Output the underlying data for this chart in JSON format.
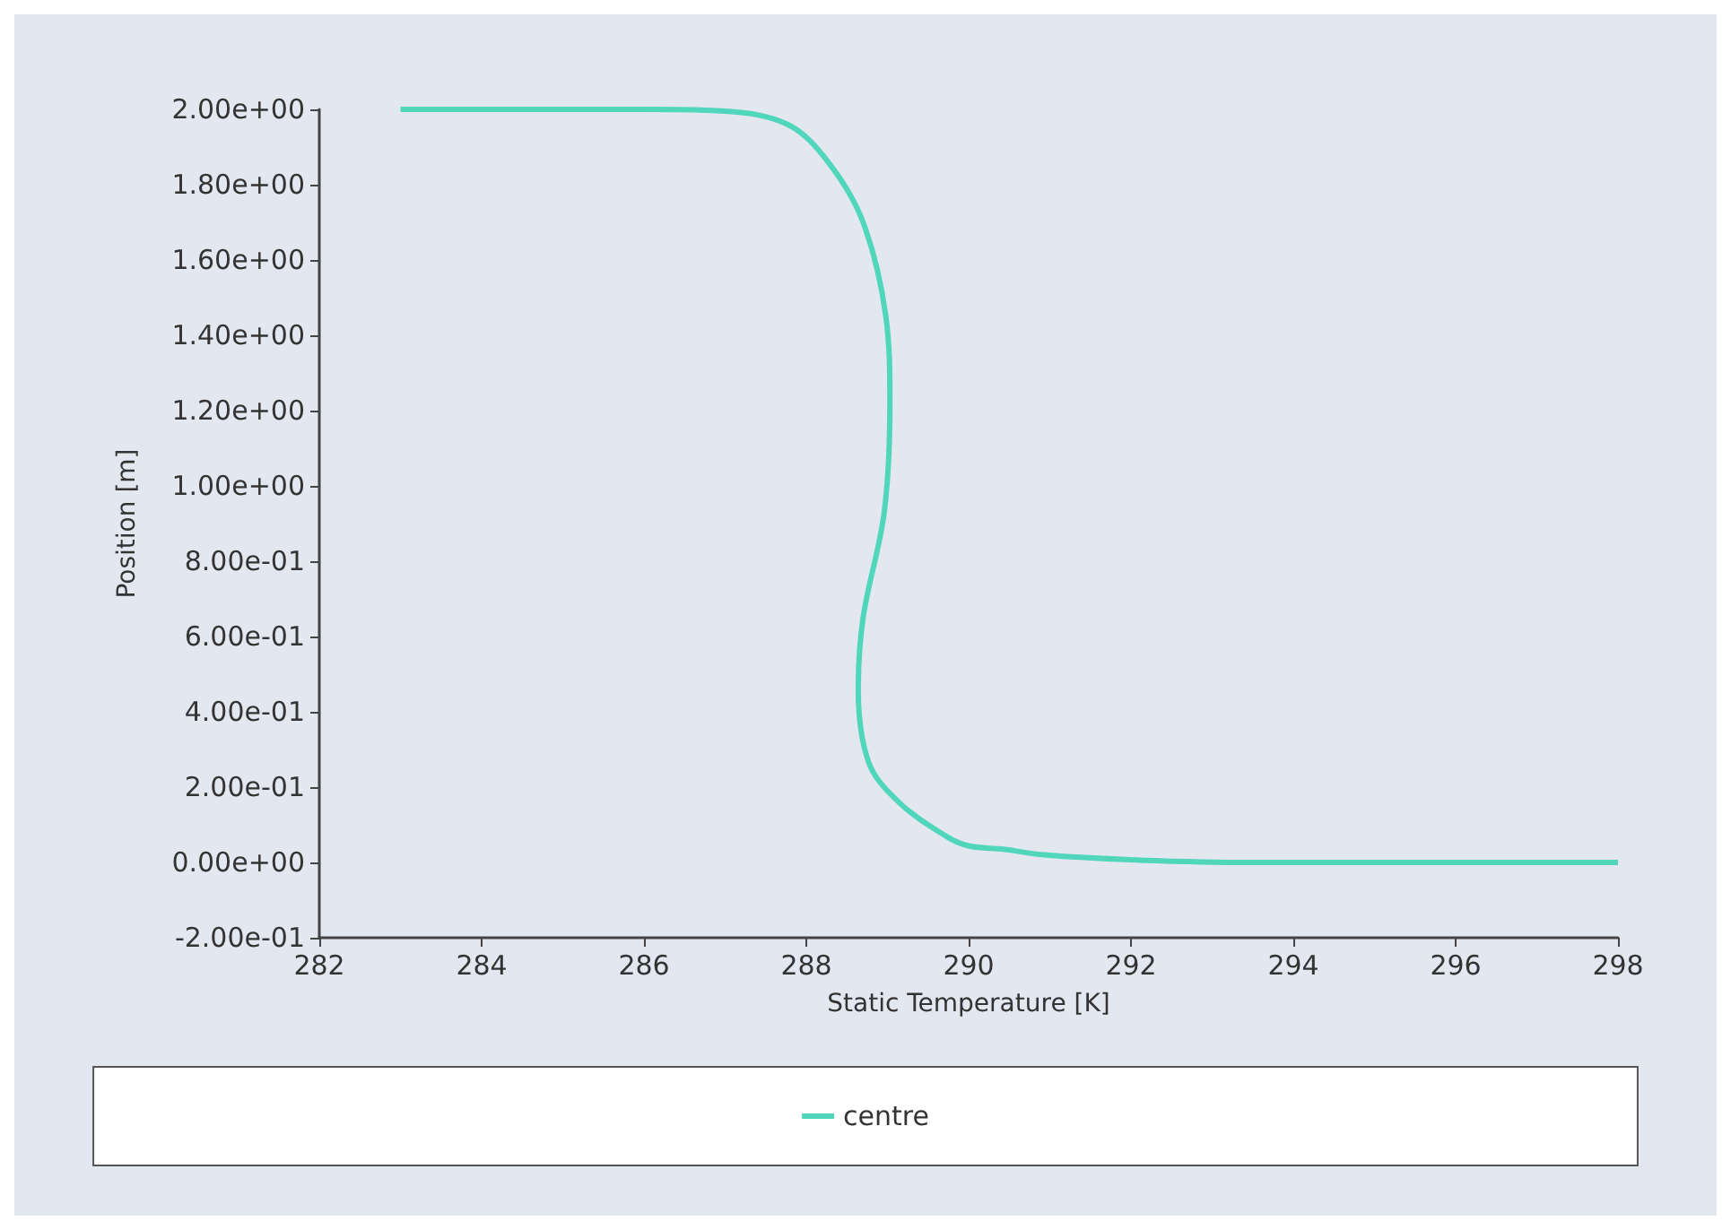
{
  "chart_data": {
    "type": "line",
    "xlabel": "Static Temperature [K]",
    "ylabel": "Position [m]",
    "xlim": [
      282,
      298
    ],
    "xticks": [
      282,
      284,
      286,
      288,
      290,
      292,
      294,
      296,
      298
    ],
    "ylim": [
      -0.2,
      2.0
    ],
    "yticks": [
      {
        "value": -0.2,
        "label": "-2.00e-01"
      },
      {
        "value": 0,
        "label": "0.00e+00"
      },
      {
        "value": 0.2,
        "label": "2.00e-01"
      },
      {
        "value": 0.4,
        "label": "4.00e-01"
      },
      {
        "value": 0.6,
        "label": "6.00e-01"
      },
      {
        "value": 0.8,
        "label": "8.00e-01"
      },
      {
        "value": 1.0,
        "label": "1.00e+00"
      },
      {
        "value": 1.2,
        "label": "1.20e+00"
      },
      {
        "value": 1.4,
        "label": "1.40e+00"
      },
      {
        "value": 1.6,
        "label": "1.60e+00"
      },
      {
        "value": 1.8,
        "label": "1.80e+00"
      },
      {
        "value": 2.0,
        "label": "2.00e+00"
      }
    ],
    "grid": false,
    "legend": "bottom",
    "marker": "none",
    "line_style": "solid",
    "series": [
      {
        "name": "centre",
        "color": "#4fd6bb",
        "x": [
          283,
          286,
          287,
          287.77,
          288.27,
          288.7,
          288.98,
          289.03,
          288.96,
          288.7,
          288.64,
          288.77,
          289.14,
          289.72,
          290.0,
          290.43,
          290.93,
          292.0,
          293.5,
          296,
          298
        ],
        "values": [
          2.0,
          2.0,
          1.995,
          1.96,
          1.86,
          1.7,
          1.45,
          1.22,
          0.93,
          0.65,
          0.46,
          0.265,
          0.16,
          0.07,
          0.044,
          0.035,
          0.02,
          0.007,
          0.0,
          0.0,
          0.0
        ]
      }
    ]
  }
}
